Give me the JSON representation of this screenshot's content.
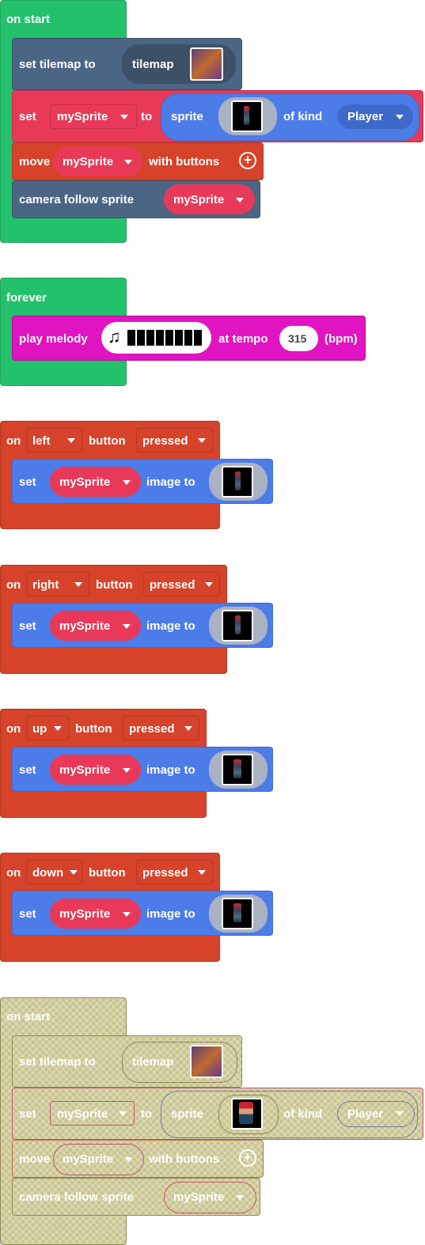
{
  "on_start_1": {
    "hat": "on start",
    "set_tilemap": "set tilemap to",
    "tilemap_label": "tilemap",
    "set": "set",
    "var": "mySprite",
    "to": "to",
    "sprite": "sprite",
    "of_kind": "of kind",
    "kind": "Player",
    "move": "move",
    "with_buttons": "with buttons",
    "camera": "camera follow sprite"
  },
  "forever": {
    "hat": "forever",
    "play_melody": "play melody",
    "at_tempo": "at tempo",
    "tempo": "315",
    "bpm": "(bpm)"
  },
  "handlers": [
    {
      "on": "on",
      "button": "left",
      "button_word": "button",
      "event": "pressed",
      "set": "set",
      "var": "mySprite",
      "image_to": "image to"
    },
    {
      "on": "on",
      "button": "right",
      "button_word": "button",
      "event": "pressed",
      "set": "set",
      "var": "mySprite",
      "image_to": "image to"
    },
    {
      "on": "on",
      "button": "up",
      "button_word": "button",
      "event": "pressed",
      "set": "set",
      "var": "mySprite",
      "image_to": "image to"
    },
    {
      "on": "on",
      "button": "down",
      "button_word": "button",
      "event": "pressed",
      "set": "set",
      "var": "mySprite",
      "image_to": "image to"
    }
  ],
  "on_start_2": {
    "hat": "on start",
    "set_tilemap": "set tilemap to",
    "tilemap_label": "tilemap",
    "set": "set",
    "var": "mySprite",
    "to": "to",
    "sprite": "sprite",
    "of_kind": "of kind",
    "kind": "Player",
    "move": "move",
    "with_buttons": "with buttons",
    "camera": "camera follow sprite"
  },
  "colors": {
    "events_green": "#23c16b",
    "scene_slate": "#4b6584",
    "sprites_red": "#e83a58",
    "controller_orange": "#d6432a",
    "sprite_blue": "#4c7ce8",
    "music_magenta": "#e014c0",
    "disabled_ghost": "#c9c48f"
  }
}
